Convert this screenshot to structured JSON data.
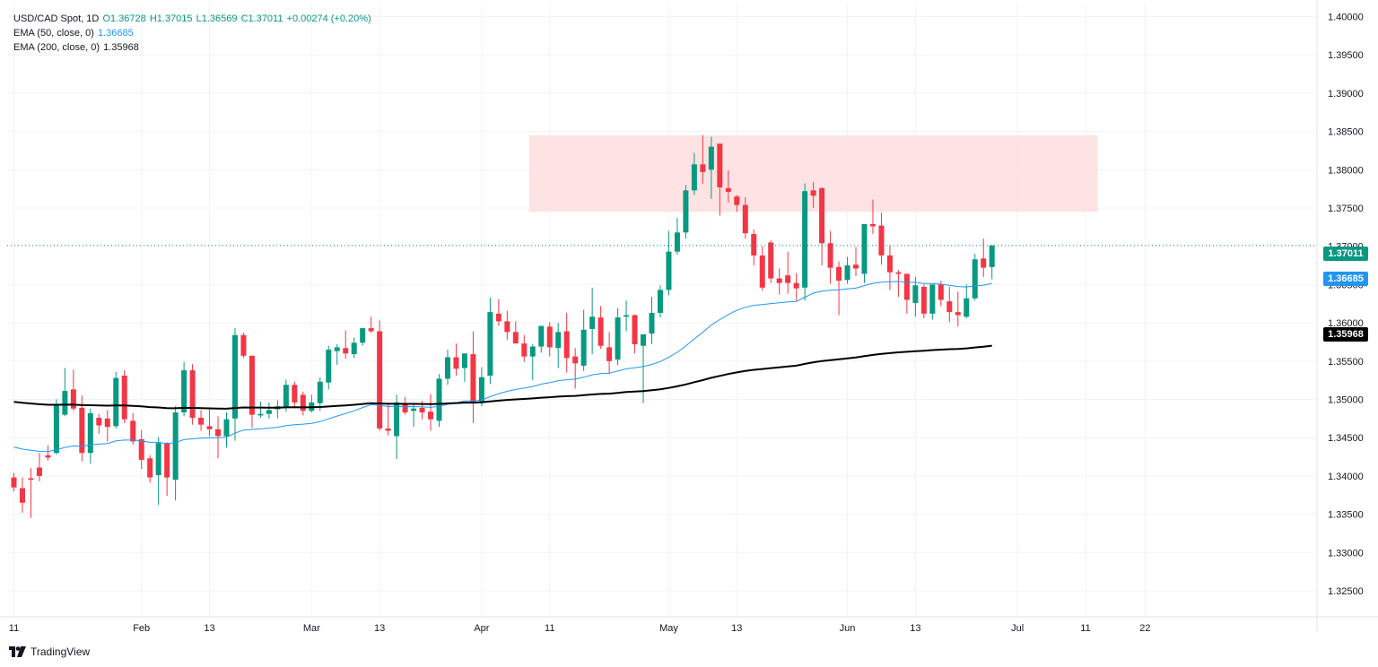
{
  "legend": {
    "symbol": "USD/CAD Spot, 1D",
    "open": "O1.36728",
    "high": "H1.37015",
    "low": "L1.36569",
    "close": "C1.37011",
    "change": "+0.00274 (+0.20%)",
    "ema50_label": "EMA (50, close, 0)",
    "ema50_value": "1.36685",
    "ema200_label": "EMA (200, close, 0)",
    "ema200_value": "1.35968"
  },
  "branding": {
    "logo_text": "TradingView"
  },
  "colors": {
    "up": "#089981",
    "down": "#f23645",
    "ema50": "#2196f3",
    "ema200": "#000000",
    "zone_fill": "#fde0e0",
    "last_price_line": "#089981",
    "grid": "#f0f3fa"
  },
  "price_tags": {
    "last": "1.37011",
    "ema50": "1.36685",
    "ema200": "1.35968"
  },
  "chart_data": {
    "type": "candlestick",
    "title": "USD/CAD Spot, 1D",
    "y_ticks": [
      "1.40000",
      "1.39500",
      "1.39000",
      "1.38500",
      "1.38000",
      "1.37500",
      "1.37000",
      "1.36500",
      "1.36000",
      "1.35500",
      "1.35000",
      "1.34500",
      "1.34000",
      "1.33500",
      "1.33000",
      "1.32500"
    ],
    "ylim": [
      1.3216,
      1.4017
    ],
    "x_ticks": [
      {
        "label": "11",
        "index": 0
      },
      {
        "label": "Feb",
        "index": 15
      },
      {
        "label": "13",
        "index": 23
      },
      {
        "label": "Mar",
        "index": 35
      },
      {
        "label": "13",
        "index": 43
      },
      {
        "label": "Apr",
        "index": 55
      },
      {
        "label": "11",
        "index": 63
      },
      {
        "label": "May",
        "index": 77
      },
      {
        "label": "13",
        "index": 85
      },
      {
        "label": "Jun",
        "index": 98
      },
      {
        "label": "13",
        "index": 106
      },
      {
        "label": "Jul",
        "index": 118
      },
      {
        "label": "11",
        "index": 126
      },
      {
        "label": "22",
        "index": 133
      }
    ],
    "last_price": 1.37011,
    "resistance_zone": {
      "from_index": 61,
      "to_index": 127,
      "low": 1.3745,
      "high": 1.3845
    },
    "candles": [
      [
        1.3398,
        1.3404,
        1.3385,
        1.338
      ],
      [
        1.3384,
        1.3398,
        1.3365,
        1.3352
      ],
      [
        1.3397,
        1.341,
        1.3395,
        1.3345
      ],
      [
        1.3411,
        1.343,
        1.34,
        1.3393
      ],
      [
        1.3427,
        1.344,
        1.3424,
        1.342
      ],
      [
        1.343,
        1.35,
        1.3493,
        1.3428
      ],
      [
        1.348,
        1.3541,
        1.3511,
        1.3478
      ],
      [
        1.3513,
        1.3539,
        1.3488,
        1.3485
      ],
      [
        1.3489,
        1.3505,
        1.343,
        1.3419
      ],
      [
        1.343,
        1.3488,
        1.3482,
        1.3416
      ],
      [
        1.3476,
        1.3481,
        1.3466,
        1.3455
      ],
      [
        1.3475,
        1.3486,
        1.3464,
        1.3445
      ],
      [
        1.3465,
        1.3536,
        1.3528,
        1.3462
      ],
      [
        1.3531,
        1.3538,
        1.3474,
        1.3469
      ],
      [
        1.3472,
        1.3482,
        1.3445,
        1.3441
      ],
      [
        1.3448,
        1.346,
        1.3421,
        1.3409
      ],
      [
        1.3423,
        1.3427,
        1.3398,
        1.3391
      ],
      [
        1.3401,
        1.3451,
        1.3443,
        1.3362
      ],
      [
        1.3443,
        1.3444,
        1.3398,
        1.3374
      ],
      [
        1.3395,
        1.3491,
        1.3483,
        1.3368
      ],
      [
        1.3483,
        1.3549,
        1.3538,
        1.3478
      ],
      [
        1.3538,
        1.3546,
        1.3476,
        1.3467
      ],
      [
        1.3476,
        1.3486,
        1.3467,
        1.3459
      ],
      [
        1.3465,
        1.3487,
        1.3461,
        1.3452
      ],
      [
        1.3461,
        1.3478,
        1.3452,
        1.3423
      ],
      [
        1.3452,
        1.3483,
        1.3474,
        1.3437
      ],
      [
        1.3475,
        1.3593,
        1.3584,
        1.3446
      ],
      [
        1.3584,
        1.3587,
        1.3557,
        1.3554
      ],
      [
        1.3557,
        1.3557,
        1.348,
        1.3463
      ],
      [
        1.3479,
        1.3497,
        1.3481,
        1.3476
      ],
      [
        1.3481,
        1.3496,
        1.3486,
        1.3475
      ],
      [
        1.3487,
        1.3499,
        1.3491,
        1.3475
      ],
      [
        1.3489,
        1.3526,
        1.3519,
        1.3484
      ],
      [
        1.3519,
        1.3523,
        1.3496,
        1.3488
      ],
      [
        1.3506,
        1.351,
        1.3485,
        1.3479
      ],
      [
        1.3485,
        1.3506,
        1.3496,
        1.3483
      ],
      [
        1.3495,
        1.3529,
        1.3523,
        1.3485
      ],
      [
        1.3522,
        1.357,
        1.3565,
        1.3513
      ],
      [
        1.3563,
        1.3572,
        1.3568,
        1.3545
      ],
      [
        1.3567,
        1.359,
        1.356,
        1.3553
      ],
      [
        1.3559,
        1.3581,
        1.3574,
        1.3554
      ],
      [
        1.3574,
        1.3587,
        1.3593,
        1.357
      ],
      [
        1.3593,
        1.3608,
        1.3589,
        1.3587
      ],
      [
        1.3589,
        1.3603,
        1.3462,
        1.3459
      ],
      [
        1.3462,
        1.3496,
        1.3459,
        1.3453
      ],
      [
        1.3452,
        1.3506,
        1.3496,
        1.3422
      ],
      [
        1.3495,
        1.3503,
        1.3483,
        1.348
      ],
      [
        1.3485,
        1.3495,
        1.3488,
        1.3464
      ],
      [
        1.3489,
        1.3498,
        1.3483,
        1.3474
      ],
      [
        1.3484,
        1.3507,
        1.3474,
        1.3459
      ],
      [
        1.3472,
        1.3533,
        1.3527,
        1.3464
      ],
      [
        1.3527,
        1.3565,
        1.3555,
        1.3519
      ],
      [
        1.3555,
        1.3573,
        1.354,
        1.3531
      ],
      [
        1.3541,
        1.356,
        1.356,
        1.3523
      ],
      [
        1.3559,
        1.3589,
        1.3496,
        1.3469
      ],
      [
        1.3496,
        1.3542,
        1.3529,
        1.3491
      ],
      [
        1.3531,
        1.3633,
        1.3614,
        1.352
      ],
      [
        1.3612,
        1.3631,
        1.3602,
        1.3596
      ],
      [
        1.3602,
        1.3616,
        1.3588,
        1.3578
      ],
      [
        1.3588,
        1.3602,
        1.3573,
        1.3573
      ],
      [
        1.3573,
        1.3584,
        1.3556,
        1.3549
      ],
      [
        1.3556,
        1.3572,
        1.3569,
        1.3525
      ],
      [
        1.3569,
        1.3592,
        1.3596,
        1.3561
      ],
      [
        1.3595,
        1.3601,
        1.3568,
        1.3556
      ],
      [
        1.3567,
        1.36,
        1.3588,
        1.3541
      ],
      [
        1.3589,
        1.3613,
        1.3554,
        1.3535
      ],
      [
        1.3556,
        1.3567,
        1.3547,
        1.3514
      ],
      [
        1.3544,
        1.3617,
        1.3591,
        1.3537
      ],
      [
        1.3592,
        1.3646,
        1.3608,
        1.3559
      ],
      [
        1.3607,
        1.3622,
        1.357,
        1.3566
      ],
      [
        1.3568,
        1.3588,
        1.355,
        1.3533
      ],
      [
        1.3552,
        1.3619,
        1.3607,
        1.3545
      ],
      [
        1.3608,
        1.3629,
        1.361,
        1.3589
      ],
      [
        1.361,
        1.3611,
        1.3572,
        1.356
      ],
      [
        1.357,
        1.3577,
        1.3585,
        1.3495
      ]
    ],
    "candles_b": [
      [
        1.3586,
        1.3634,
        1.3613,
        1.3572
      ],
      [
        1.3613,
        1.3649,
        1.3643,
        1.3607
      ],
      [
        1.3643,
        1.372,
        1.3693,
        1.3636
      ],
      [
        1.3693,
        1.3737,
        1.3718,
        1.3689
      ],
      [
        1.3718,
        1.378,
        1.3773,
        1.371
      ],
      [
        1.3773,
        1.3822,
        1.3807,
        1.3767
      ],
      [
        1.3807,
        1.3845,
        1.3797,
        1.3782
      ],
      [
        1.38,
        1.3843,
        1.383,
        1.3762
      ],
      [
        1.3834,
        1.3834,
        1.3777,
        1.374
      ],
      [
        1.3776,
        1.3799,
        1.3771,
        1.3757
      ],
      [
        1.3765,
        1.3767,
        1.3754,
        1.3745
      ],
      [
        1.3754,
        1.3764,
        1.3717,
        1.371
      ],
      [
        1.3716,
        1.3722,
        1.3688,
        1.3675
      ],
      [
        1.3688,
        1.37,
        1.3646,
        1.3642
      ],
      [
        1.3705,
        1.3708,
        1.3658,
        1.3652
      ],
      [
        1.3658,
        1.3671,
        1.3652,
        1.3637
      ],
      [
        1.3662,
        1.3693,
        1.3652,
        1.3638
      ],
      [
        1.3652,
        1.3665,
        1.3645,
        1.3629
      ],
      [
        1.3646,
        1.3782,
        1.3772,
        1.3629
      ],
      [
        1.3773,
        1.3784,
        1.3766,
        1.375
      ],
      [
        1.3776,
        1.3777,
        1.3704,
        1.3675
      ],
      [
        1.3704,
        1.372,
        1.3672,
        1.3651
      ],
      [
        1.3673,
        1.368,
        1.3655,
        1.361
      ],
      [
        1.3656,
        1.3686,
        1.3675,
        1.3651
      ],
      [
        1.3676,
        1.3699,
        1.3671,
        1.3661
      ],
      [
        1.3664,
        1.372,
        1.3729,
        1.3652
      ],
      [
        1.3729,
        1.3761,
        1.3726,
        1.3716
      ],
      [
        1.3727,
        1.3744,
        1.3688,
        1.3676
      ],
      [
        1.3688,
        1.3701,
        1.3666,
        1.3643
      ],
      [
        1.3666,
        1.3669,
        1.3664,
        1.3634
      ]
    ],
    "note": ""
  }
}
